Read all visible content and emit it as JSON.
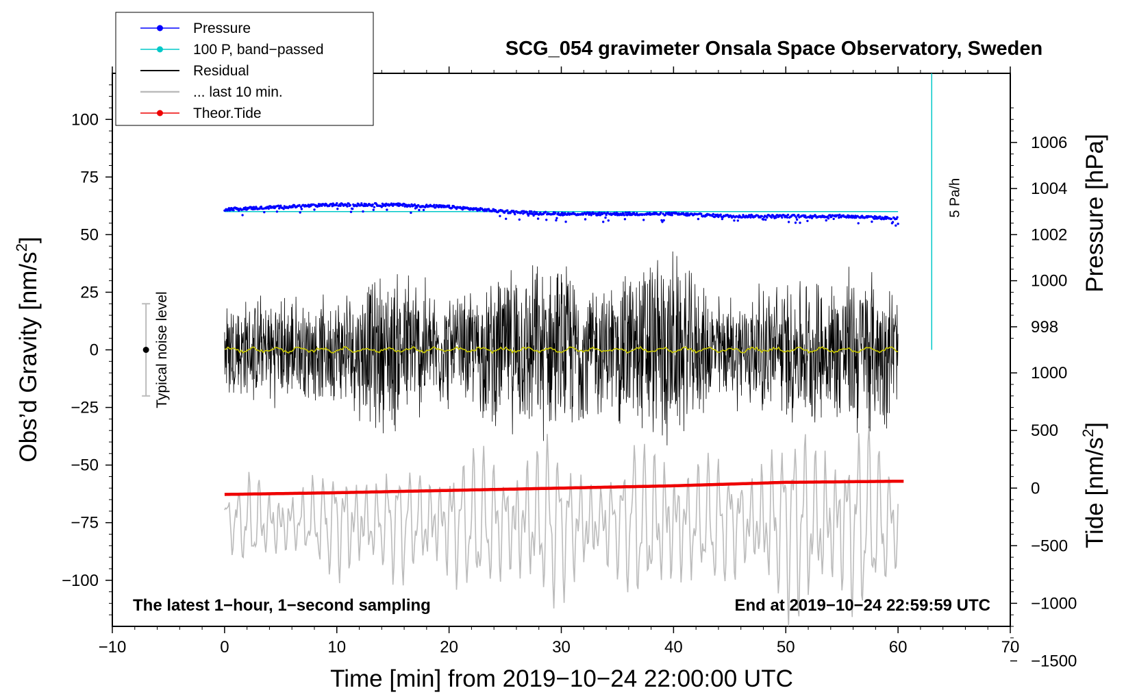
{
  "chart_data": {
    "type": "line",
    "title": "SCG_054 gravimeter Onsala Space Observatory, Sweden",
    "xlabel": "Time [min] from 2019−10−24 22:00:00 UTC",
    "ylabel_left": "Obs’d Gravity [nm/s",
    "ylabel_left_sup": "2",
    "ylabel_left_close": "]",
    "ylabel_right_pressure": "Pressure [hPa]",
    "ylabel_right_tide": "Tide [nm/s",
    "ylabel_right_tide_sup": "2",
    "ylabel_right_tide_close": "]",
    "xlim": [
      -10,
      70
    ],
    "ylim": [
      -120,
      120
    ],
    "x_ticks": [
      {
        "v": -10,
        "label": "−10"
      },
      {
        "v": 0,
        "label": "0"
      },
      {
        "v": 10,
        "label": "10"
      },
      {
        "v": 20,
        "label": "20"
      },
      {
        "v": 30,
        "label": "30"
      },
      {
        "v": 40,
        "label": "40"
      },
      {
        "v": 50,
        "label": "50"
      },
      {
        "v": 60,
        "label": "60"
      },
      {
        "v": 70,
        "label": "70"
      }
    ],
    "y_ticks_left": [
      {
        "v": 100,
        "label": "100"
      },
      {
        "v": 75,
        "label": "75"
      },
      {
        "v": 50,
        "label": "50"
      },
      {
        "v": 25,
        "label": "25"
      },
      {
        "v": 0,
        "label": "0"
      },
      {
        "v": -25,
        "label": "−25"
      },
      {
        "v": -50,
        "label": "−50"
      },
      {
        "v": -75,
        "label": "−75"
      },
      {
        "v": -100,
        "label": "−100"
      }
    ],
    "pressure_axis": {
      "unit": "hPa",
      "ticks": [
        {
          "v": 1006,
          "label": "1006"
        },
        {
          "v": 1004,
          "label": "1004"
        },
        {
          "v": 1002,
          "label": "1002"
        },
        {
          "v": 1000,
          "label": "1000"
        },
        {
          "v": 998,
          "label": "998"
        }
      ],
      "gravity_at_1002": 50,
      "gravity_per_hpa": 10
    },
    "tide_axis": {
      "unit": "nm/s2",
      "ticks": [
        {
          "v": 1000,
          "label": "1000"
        },
        {
          "v": 500,
          "label": "500"
        },
        {
          "v": 0,
          "label": "0"
        },
        {
          "v": -500,
          "label": "−500"
        },
        {
          "v": -1000,
          "label": "−1000"
        },
        {
          "v": -1500,
          "label": "−1500"
        }
      ],
      "gravity_at_0": -60,
      "gravity_per_unit": 0.05
    },
    "legend": {
      "placement": "top-left",
      "entries": [
        {
          "label": "Pressure",
          "color": "#0000ff",
          "marker": true
        },
        {
          "label": "100 P, band−passed",
          "color": "#00c8c8",
          "marker": true
        },
        {
          "label": "Residual",
          "color": "#000000",
          "marker": false
        },
        {
          "label": "... last 10 min.",
          "color": "#bbbbbb",
          "marker": false
        },
        {
          "label": "Theor.Tide",
          "color": "#ee0000",
          "marker": true
        }
      ]
    },
    "annotations": {
      "noise_label": "Typical noise level",
      "noise_center": 0,
      "noise_halfwidth": 20,
      "noise_x": -7,
      "rate_label": "5 Pa/h",
      "rate_bar_x": 63,
      "rate_bar_range": [
        0,
        120
      ],
      "footer_left": "The latest 1−hour, 1−second sampling",
      "footer_right": "End at 2019−10−24 22:59:59 UTC"
    },
    "series": [
      {
        "name": "Pressure",
        "color": "#0000ff",
        "unit": "hPa",
        "x_range": [
          0,
          60
        ],
        "values": [
          1003.1,
          1003.2,
          1003.3,
          1003.3,
          1003.2,
          1003.0,
          1002.9,
          1002.9,
          1002.9,
          1002.8,
          1002.8,
          1002.8,
          1002.7
        ]
      },
      {
        "name": "100 P, band-passed",
        "color": "#00c8c8",
        "unit": "gravity",
        "x_range": [
          0,
          60
        ],
        "values": [
          60,
          60,
          60,
          60,
          60,
          60,
          60
        ]
      },
      {
        "name": "Residual",
        "color": "#000000",
        "unit": "gravity",
        "x_range": [
          0,
          60
        ],
        "envelope": [
          28,
          25,
          26,
          27,
          24,
          25,
          30,
          36,
          40,
          38,
          30,
          26,
          30,
          38,
          40,
          42,
          41,
          38,
          30,
          40,
          45,
          50,
          38,
          28,
          26,
          30,
          32,
          36,
          35,
          36,
          42,
          38,
          32
        ]
      },
      {
        "name": "Residual smoothed",
        "color": "#c8c800",
        "unit": "gravity",
        "x_range": [
          0,
          60
        ],
        "values": [
          0,
          0,
          0,
          0,
          0,
          0,
          0
        ]
      },
      {
        "name": "... last 10 min.",
        "color": "#bbbbbb",
        "unit": "gravity",
        "x_range": [
          0,
          60
        ],
        "center": -75,
        "envelope": [
          14,
          18,
          20,
          18,
          16,
          22,
          28,
          26,
          24,
          22,
          28,
          34,
          30,
          28,
          36,
          40,
          30,
          26,
          28,
          30,
          35,
          40,
          32,
          26,
          28,
          30,
          36,
          40,
          42,
          45,
          44,
          35,
          25
        ]
      },
      {
        "name": "Theor.Tide",
        "color": "#ee0000",
        "unit": "nm/s2",
        "x": [
          0,
          10,
          20,
          30,
          40,
          50,
          60.5
        ],
        "values": [
          -55,
          -40,
          -20,
          0,
          20,
          50,
          60
        ]
      }
    ]
  }
}
